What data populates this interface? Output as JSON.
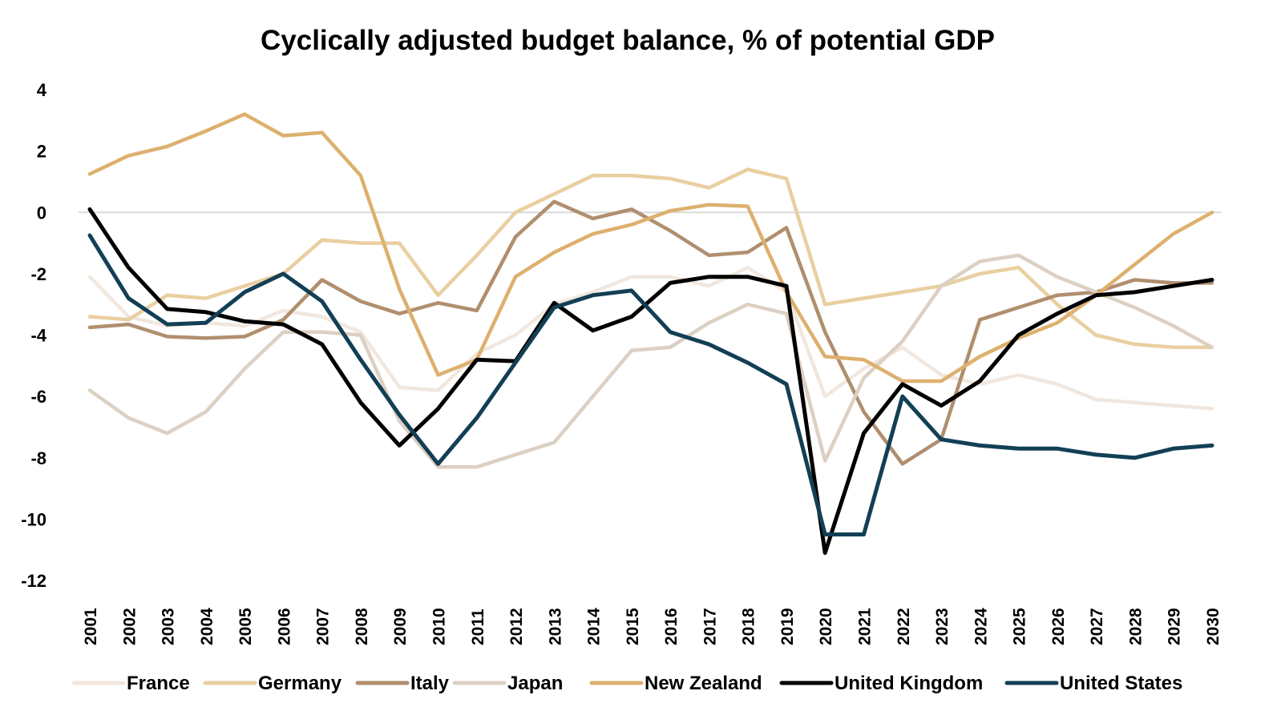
{
  "chart_data": {
    "type": "line",
    "title": "Cyclically adjusted budget balance, % of potential GDP",
    "xlabel": "",
    "ylabel": "",
    "ylim": [
      -12,
      4
    ],
    "yticks": [
      4,
      2,
      0,
      -2,
      -4,
      -6,
      -8,
      -10,
      -12
    ],
    "grid": false,
    "zero_line": true,
    "legend_position": "bottom",
    "x": [
      "2001",
      "2002",
      "2003",
      "2004",
      "2005",
      "2006",
      "2007",
      "2008",
      "2009",
      "2010",
      "2011",
      "2012",
      "2013",
      "2014",
      "2015",
      "2016",
      "2017",
      "2018",
      "2019",
      "2020",
      "2021",
      "2022",
      "2023",
      "2024",
      "2025",
      "2026",
      "2027",
      "2028",
      "2029",
      "2030"
    ],
    "series": [
      {
        "name": "France",
        "color": "#F1E7DE",
        "values": [
          -2.1,
          -3.4,
          -3.7,
          -3.6,
          -3.7,
          -3.2,
          -3.4,
          -3.9,
          -5.7,
          -5.8,
          -4.6,
          -4.0,
          -3.0,
          -2.6,
          -2.1,
          -2.1,
          -2.4,
          -1.8,
          -2.6,
          -6.0,
          -5.1,
          -4.4,
          -5.3,
          -5.6,
          -5.3,
          -5.6,
          -6.1,
          -6.2,
          -6.3,
          -6.4
        ]
      },
      {
        "name": "Germany",
        "color": "#E9CFA0",
        "values": [
          -3.4,
          -3.5,
          -2.7,
          -2.8,
          -2.4,
          -2.0,
          -0.9,
          -1.0,
          -1.0,
          -2.7,
          -1.4,
          0.0,
          0.6,
          1.2,
          1.2,
          1.1,
          0.8,
          1.4,
          1.1,
          -3.0,
          -2.8,
          -2.6,
          -2.4,
          -2.0,
          -1.8,
          -3.0,
          -4.0,
          -4.3,
          -4.4,
          -4.4
        ]
      },
      {
        "name": "Italy",
        "color": "#B08E6E",
        "values": [
          -3.75,
          -3.65,
          -4.05,
          -4.1,
          -4.05,
          -3.5,
          -2.2,
          -2.9,
          -3.3,
          -2.95,
          -3.2,
          -0.8,
          0.35,
          -0.2,
          0.1,
          -0.6,
          -1.4,
          -1.3,
          -0.5,
          -3.9,
          -6.5,
          -8.2,
          -7.4,
          -3.5,
          -3.1,
          -2.7,
          -2.6,
          -2.2,
          -2.3,
          -2.3
        ]
      },
      {
        "name": "Japan",
        "color": "#DCD0C4",
        "values": [
          -5.8,
          -6.7,
          -7.2,
          -6.5,
          -5.1,
          -3.9,
          -3.9,
          -4.0,
          -6.8,
          -8.3,
          -8.3,
          -7.9,
          -7.5,
          -6.0,
          -4.5,
          -4.4,
          -3.6,
          -3.0,
          -3.3,
          -8.1,
          -5.4,
          -4.2,
          -2.4,
          -1.6,
          -1.4,
          -2.1,
          -2.6,
          -3.1,
          -3.7,
          -4.4
        ]
      },
      {
        "name": "New Zealand",
        "color": "#DDB06E",
        "values": [
          1.25,
          1.85,
          2.15,
          2.65,
          3.2,
          2.5,
          2.6,
          1.2,
          -2.5,
          -5.3,
          -4.8,
          -2.1,
          -1.3,
          -0.7,
          -0.4,
          0.05,
          0.25,
          0.2,
          -2.6,
          -4.7,
          -4.8,
          -5.5,
          -5.5,
          -4.7,
          -4.1,
          -3.6,
          -2.7,
          -1.7,
          -0.7,
          0.0
        ]
      },
      {
        "name": "United Kingdom",
        "color": "#000000",
        "values": [
          0.1,
          -1.8,
          -3.15,
          -3.25,
          -3.55,
          -3.65,
          -4.3,
          -6.2,
          -7.6,
          -6.4,
          -4.8,
          -4.85,
          -2.95,
          -3.85,
          -3.4,
          -2.3,
          -2.1,
          -2.1,
          -2.4,
          -11.1,
          -7.2,
          -5.6,
          -6.3,
          -5.5,
          -4.0,
          -3.3,
          -2.7,
          -2.6,
          -2.4,
          -2.2
        ]
      },
      {
        "name": "United States",
        "color": "#123F55",
        "values": [
          -0.75,
          -2.8,
          -3.65,
          -3.6,
          -2.6,
          -2.0,
          -2.9,
          -4.8,
          -6.6,
          -8.2,
          -6.7,
          -4.9,
          -3.1,
          -2.7,
          -2.55,
          -3.9,
          -4.3,
          -4.9,
          -5.6,
          -10.5,
          -10.5,
          -6.0,
          -7.4,
          -7.6,
          -7.7,
          -7.7,
          -7.9,
          -8.0,
          -7.7,
          -7.6
        ]
      }
    ]
  }
}
